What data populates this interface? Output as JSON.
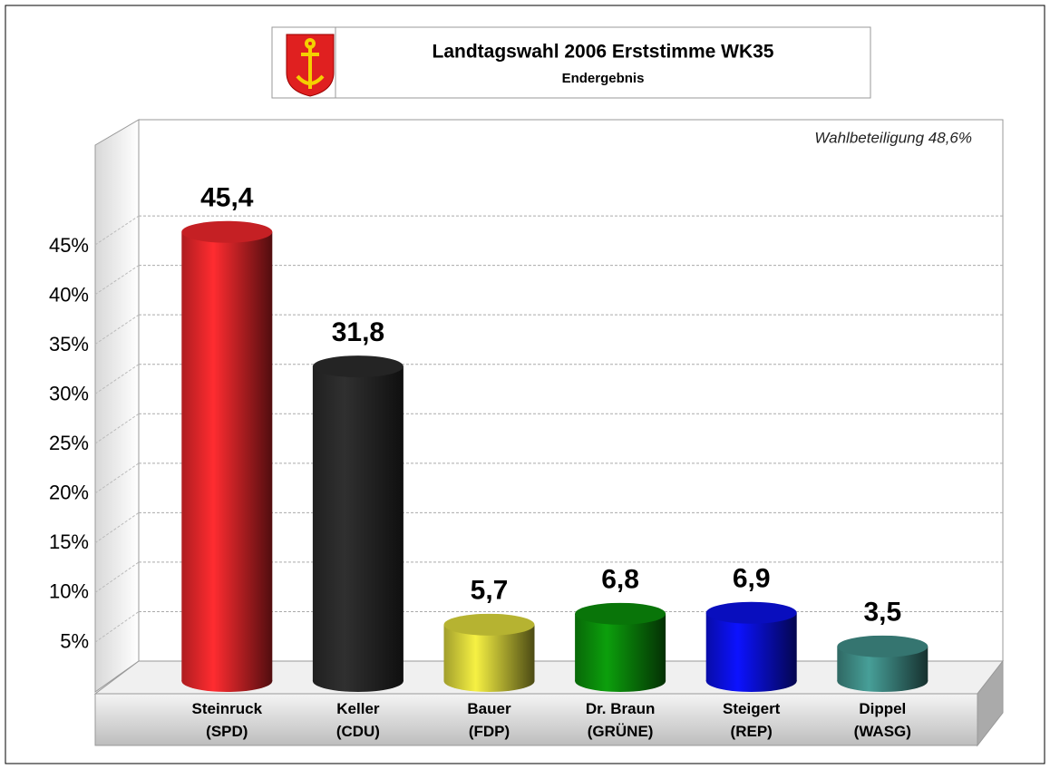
{
  "chart_data": {
    "type": "bar",
    "title": "Landtagswahl 2006 Erststimme WK35",
    "subtitle": "Endergebnis",
    "annotation": "Wahlbeteiligung 48,6%",
    "categories": [
      "Steinruck\n(SPD)",
      "Keller\n(CDU)",
      "Bauer\n(FDP)",
      "Dr. Braun\n(GRÜNE)",
      "Steigert\n(REP)",
      "Dippel\n(WASG)"
    ],
    "values": [
      45.4,
      31.8,
      5.7,
      6.8,
      6.9,
      3.5
    ],
    "value_labels": [
      "45,4",
      "31,8",
      "5,7",
      "6,8",
      "6,9",
      "3,5"
    ],
    "colors": [
      "#e8262a",
      "#2a2a2a",
      "#d6d23a",
      "#0a8a0a",
      "#0a10e0",
      "#3e8a84"
    ],
    "ylim": [
      0,
      55
    ],
    "yticks": [
      {
        "value": 5,
        "label": "5%"
      },
      {
        "value": 10,
        "label": "10%"
      },
      {
        "value": 15,
        "label": "15%"
      },
      {
        "value": 20,
        "label": "20%"
      },
      {
        "value": 25,
        "label": "25%"
      },
      {
        "value": 30,
        "label": "30%"
      },
      {
        "value": 35,
        "label": "35%"
      },
      {
        "value": 40,
        "label": "40%"
      },
      {
        "value": 45,
        "label": "45%"
      }
    ],
    "grid": true
  }
}
